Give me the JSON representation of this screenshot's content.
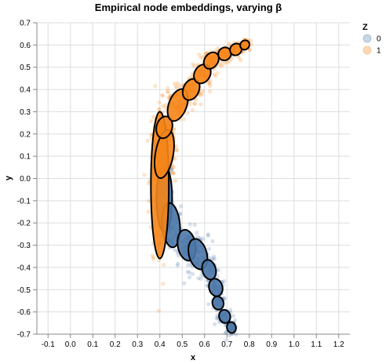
{
  "chart_data": {
    "type": "scatter",
    "title": "Empirical node embeddings, varying β",
    "xlabel": "x",
    "ylabel": "y",
    "xlim": [
      -0.15,
      1.25
    ],
    "ylim": [
      -0.7,
      0.7
    ],
    "x_ticks": [
      "-0.1",
      "0.0",
      "0.1",
      "0.2",
      "0.3",
      "0.4",
      "0.5",
      "0.6",
      "0.7",
      "0.8",
      "0.9",
      "1.0",
      "1.1",
      "1.2"
    ],
    "y_ticks": [
      "0.7",
      "0.6",
      "0.5",
      "0.4",
      "0.3",
      "0.2",
      "0.1",
      "0.0",
      "-0.1",
      "-0.2",
      "-0.3",
      "-0.4",
      "-0.5",
      "-0.6",
      "-0.7"
    ],
    "x_tick_values": [
      -0.1,
      0.0,
      0.1,
      0.2,
      0.3,
      0.4,
      0.5,
      0.6,
      0.7,
      0.8,
      0.9,
      1.0,
      1.1,
      1.2
    ],
    "y_tick_values": [
      0.7,
      0.6,
      0.5,
      0.4,
      0.3,
      0.2,
      0.1,
      0.0,
      -0.1,
      -0.2,
      -0.3,
      -0.4,
      -0.5,
      -0.6,
      -0.7
    ],
    "grid": true,
    "legend": {
      "title": "Z",
      "position": "top-right",
      "entries": [
        "0",
        "1"
      ]
    },
    "colors": {
      "0": "#4c78a8",
      "1": "#f58518"
    },
    "series": [
      {
        "name": "0",
        "ellipses": [
          {
            "cx": 0.42,
            "cy": -0.09,
            "rx": 0.035,
            "ry": 0.15,
            "rot": 0
          },
          {
            "cx": 0.45,
            "cy": -0.21,
            "rx": 0.04,
            "ry": 0.1,
            "rot": -5
          },
          {
            "cx": 0.52,
            "cy": -0.3,
            "rx": 0.04,
            "ry": 0.07,
            "rot": -10
          },
          {
            "cx": 0.57,
            "cy": -0.34,
            "rx": 0.04,
            "ry": 0.07,
            "rot": -15
          },
          {
            "cx": 0.62,
            "cy": -0.41,
            "rx": 0.03,
            "ry": 0.045,
            "rot": -15
          },
          {
            "cx": 0.65,
            "cy": -0.49,
            "rx": 0.03,
            "ry": 0.04,
            "rot": -15
          },
          {
            "cx": 0.66,
            "cy": -0.56,
            "rx": 0.025,
            "ry": 0.03,
            "rot": -15
          },
          {
            "cx": 0.69,
            "cy": -0.62,
            "rx": 0.025,
            "ry": 0.03,
            "rot": -15
          },
          {
            "cx": 0.72,
            "cy": -0.67,
            "rx": 0.02,
            "ry": 0.025,
            "rot": -15
          }
        ]
      },
      {
        "name": "1",
        "ellipses": [
          {
            "cx": 0.4,
            "cy": -0.03,
            "rx": 0.04,
            "ry": 0.33,
            "rot": 0
          },
          {
            "cx": 0.42,
            "cy": 0.11,
            "rx": 0.04,
            "ry": 0.11,
            "rot": 10
          },
          {
            "cx": 0.42,
            "cy": 0.23,
            "rx": 0.035,
            "ry": 0.05,
            "rot": 15
          },
          {
            "cx": 0.48,
            "cy": 0.33,
            "rx": 0.04,
            "ry": 0.075,
            "rot": 20
          },
          {
            "cx": 0.54,
            "cy": 0.4,
            "rx": 0.035,
            "ry": 0.05,
            "rot": 25
          },
          {
            "cx": 0.59,
            "cy": 0.47,
            "rx": 0.035,
            "ry": 0.045,
            "rot": 30
          },
          {
            "cx": 0.63,
            "cy": 0.53,
            "rx": 0.03,
            "ry": 0.04,
            "rot": 35
          },
          {
            "cx": 0.69,
            "cy": 0.56,
            "rx": 0.028,
            "ry": 0.03,
            "rot": 40
          },
          {
            "cx": 0.74,
            "cy": 0.58,
            "rx": 0.025,
            "ry": 0.028,
            "rot": 45
          },
          {
            "cx": 0.78,
            "cy": 0.6,
            "rx": 0.02,
            "ry": 0.022,
            "rot": 45
          }
        ]
      }
    ]
  }
}
